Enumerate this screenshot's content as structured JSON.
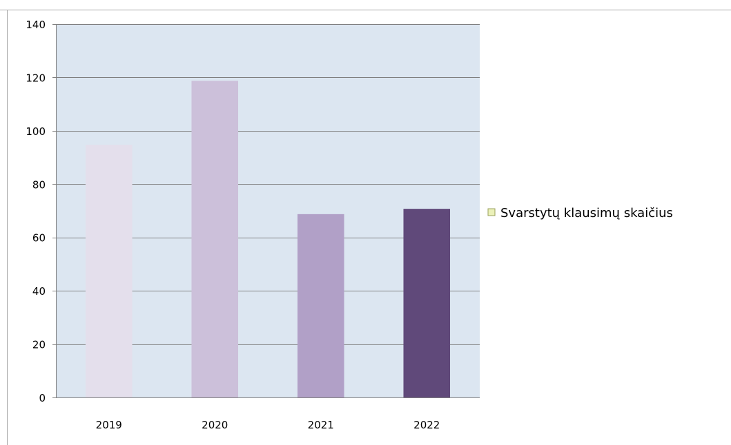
{
  "chart_data": {
    "type": "bar",
    "categories": [
      "2019",
      "2020",
      "2021",
      "2022"
    ],
    "series": [
      {
        "name": "Svarstytų klausimų skaičius",
        "values": [
          95,
          119,
          69,
          71
        ]
      }
    ],
    "bar_colors": [
      "#e4dfec",
      "#ccc0da",
      "#b1a0c7",
      "#60497a"
    ],
    "legend_swatch_color": "#ebf1b9",
    "plot_background": "#dce6f1",
    "gridline_color": "#7f7f7f",
    "ylim": [
      0,
      140
    ],
    "y_ticks": [
      0,
      20,
      40,
      60,
      80,
      100,
      120,
      140
    ],
    "grid": true,
    "legend_position": "right",
    "title": "",
    "xlabel": "",
    "ylabel": ""
  }
}
